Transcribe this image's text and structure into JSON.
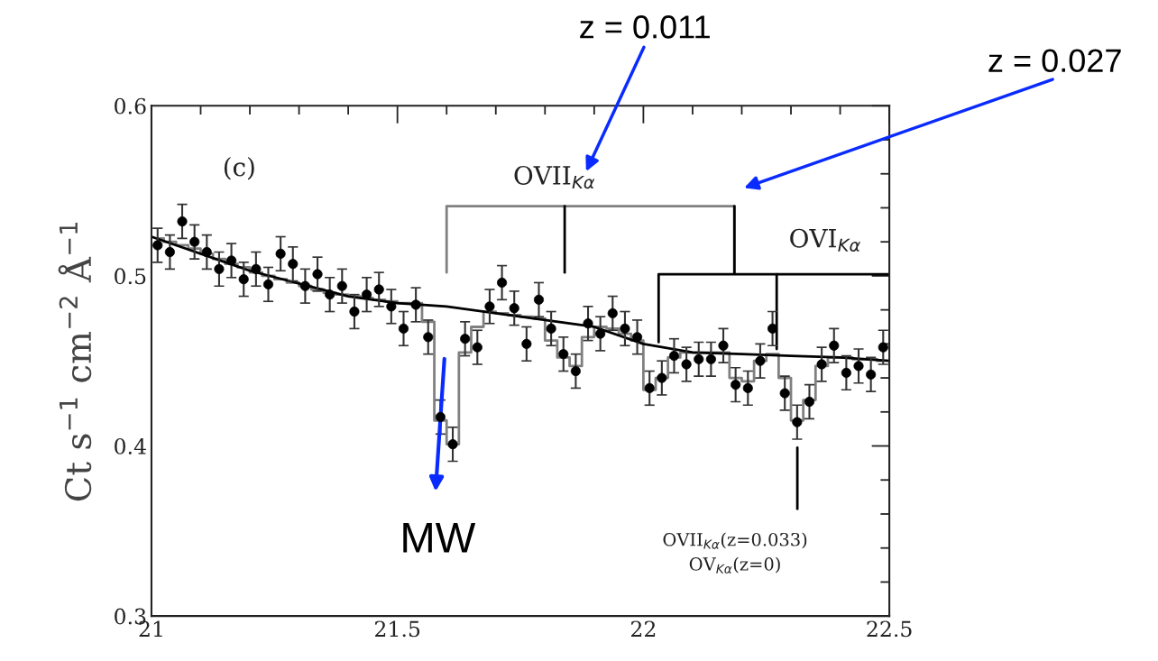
{
  "chart_data": {
    "type": "scatter",
    "ylabel": "Ct s$^{−1}$ cm$^{−2}$ Å$^{−1}$",
    "xlim": [
      21,
      22.5
    ],
    "ylim": [
      0.3,
      0.6
    ],
    "xticks": [
      21,
      {
        "value": 21.1,
        "label": null
      },
      {
        "value": 21.2,
        "label": null
      },
      {
        "value": 21.3,
        "label": null
      },
      {
        "value": 21.4,
        "label": null
      },
      21.5,
      {
        "value": 21.6,
        "label": null
      },
      {
        "value": 21.7,
        "label": null
      },
      {
        "value": 21.8,
        "label": null
      },
      {
        "value": 21.9,
        "label": null
      },
      22,
      {
        "value": 22.1,
        "label": null
      },
      {
        "value": 22.2,
        "label": null
      },
      {
        "value": 22.3,
        "label": null
      },
      {
        "value": 22.4,
        "label": null
      },
      22.5
    ],
    "yticks": [
      0.3,
      {
        "value": 0.32,
        "label": null
      },
      {
        "value": 0.34,
        "label": null
      },
      {
        "value": 0.36,
        "label": null
      },
      {
        "value": 0.38,
        "label": null
      },
      0.4,
      {
        "value": 0.42,
        "label": null
      },
      {
        "value": 0.44,
        "label": null
      },
      {
        "value": 0.46,
        "label": null
      },
      {
        "value": 0.48,
        "label": null
      },
      0.5,
      {
        "value": 0.52,
        "label": null
      },
      {
        "value": 0.54,
        "label": null
      },
      {
        "value": 0.56,
        "label": null
      },
      {
        "value": 0.58,
        "label": null
      },
      0.6
    ],
    "grid": false,
    "legend": false,
    "x": [
      21.0125,
      21.0375,
      21.0625,
      21.0875,
      21.1125,
      21.1375,
      21.1625,
      21.1875,
      21.2125,
      21.2375,
      21.2625,
      21.2875,
      21.3125,
      21.3375,
      21.3625,
      21.3875,
      21.4125,
      21.4375,
      21.4625,
      21.4875,
      21.5125,
      21.5375,
      21.5625,
      21.5875,
      21.6125,
      21.6375,
      21.6625,
      21.6875,
      21.7125,
      21.7375,
      21.7625,
      21.7875,
      21.8125,
      21.8375,
      21.8625,
      21.8875,
      21.9125,
      21.9375,
      21.9625,
      21.9875,
      22.0125,
      22.0375,
      22.0625,
      22.0875,
      22.1125,
      22.1375,
      22.1625,
      22.1875,
      22.2125,
      22.2375,
      22.2625,
      22.2875,
      22.3125,
      22.3375,
      22.3625,
      22.3875,
      22.4125,
      22.4375,
      22.4625,
      22.4875
    ],
    "series": [
      {
        "type": "step",
        "color": "#808080",
        "values": [
          0.522,
          0.52,
          0.518,
          0.516,
          0.513,
          0.51,
          0.507,
          0.505,
          0.502,
          0.5,
          0.498,
          0.496,
          0.494,
          0.492,
          0.49,
          0.489,
          0.488,
          0.487,
          0.486,
          0.485,
          0.484,
          0.484,
          0.473,
          0.415,
          0.401,
          0.455,
          0.47,
          0.479,
          0.478,
          0.477,
          0.476,
          0.475,
          0.462,
          0.452,
          0.447,
          0.464,
          0.47,
          0.469,
          0.466,
          0.462,
          0.433,
          0.44,
          0.452,
          0.455,
          0.455,
          0.455,
          0.455,
          0.44,
          0.438,
          0.45,
          0.454,
          0.44,
          0.415,
          0.427,
          0.447,
          0.452,
          0.452,
          0.451,
          0.451,
          0.45
        ]
      },
      {
        "type": "line",
        "color": "#000000",
        "x": [
          21.0,
          21.2,
          21.4,
          21.5,
          21.6,
          21.7,
          21.8,
          21.9,
          22.0,
          22.1,
          22.2,
          22.3,
          22.4,
          22.5
        ],
        "values": [
          0.523,
          0.503,
          0.488,
          0.484,
          0.482,
          0.478,
          0.474,
          0.47,
          0.46,
          0.455,
          0.454,
          0.453,
          0.452,
          0.45
        ]
      },
      {
        "marker": "circle",
        "color": "#000000",
        "values": [
          0.518,
          0.514,
          0.532,
          0.52,
          0.514,
          0.504,
          0.509,
          0.498,
          0.504,
          0.495,
          0.513,
          0.507,
          0.494,
          0.501,
          0.489,
          0.494,
          0.479,
          0.489,
          0.492,
          0.482,
          0.469,
          0.483,
          0.464,
          0.417,
          0.401,
          0.463,
          0.458,
          0.482,
          0.496,
          0.481,
          0.46,
          0.486,
          0.469,
          0.454,
          0.444,
          0.472,
          0.466,
          0.478,
          0.469,
          0.464,
          0.434,
          0.44,
          0.453,
          0.448,
          0.451,
          0.451,
          0.459,
          0.436,
          0.434,
          0.45,
          0.469,
          0.431,
          0.414,
          0.426,
          0.448,
          0.459,
          0.443,
          0.447,
          0.442,
          0.458
        ],
        "errors": [
          0.01,
          0.01,
          0.01,
          0.01,
          0.01,
          0.01,
          0.01,
          0.01,
          0.01,
          0.01,
          0.01,
          0.01,
          0.01,
          0.01,
          0.01,
          0.01,
          0.01,
          0.01,
          0.01,
          0.01,
          0.01,
          0.01,
          0.01,
          0.01,
          0.01,
          0.01,
          0.01,
          0.01,
          0.01,
          0.01,
          0.01,
          0.01,
          0.01,
          0.01,
          0.01,
          0.01,
          0.01,
          0.01,
          0.01,
          0.01,
          0.01,
          0.01,
          0.01,
          0.01,
          0.01,
          0.01,
          0.01,
          0.01,
          0.01,
          0.01,
          0.01,
          0.01,
          0.01,
          0.01,
          0.01,
          0.01,
          0.01,
          0.01,
          0.01,
          0.01
        ]
      },
      {
        "type": "line",
        "color": "#808080",
        "x": [
          21.6,
          21.6,
          22.185,
          22.185
        ],
        "values": [
          0.502,
          0.541,
          0.541,
          0.502
        ]
      },
      {
        "type": "line",
        "color": "#000000",
        "x": [
          21.84,
          21.84
        ],
        "values": [
          0.541,
          0.502
        ]
      },
      {
        "type": "line",
        "color": "#000000",
        "x": [
          22.185,
          22.185
        ],
        "values": [
          0.541,
          0.502
        ]
      },
      {
        "type": "line",
        "color": "#000000",
        "x": [
          22.031,
          22.031,
          22.5
        ],
        "values": [
          0.461,
          0.501,
          0.501
        ]
      },
      {
        "type": "line",
        "color": "#000000",
        "x": [
          22.271,
          22.271
        ],
        "values": [
          0.501,
          0.457
        ]
      },
      {
        "type": "line",
        "color": "#000000",
        "x": [
          22.313,
          22.313
        ],
        "values": [
          0.399,
          0.363
        ]
      }
    ],
    "annotations": [
      "(c)",
      "OVII$_{Kα}$",
      "OVI$_{Kα}$",
      "OVII$_{Kα}$(z=0.033)",
      "OV$_{Kα}$(z=0)",
      "z = 0.011",
      "z = 0.027",
      "MW"
    ]
  }
}
